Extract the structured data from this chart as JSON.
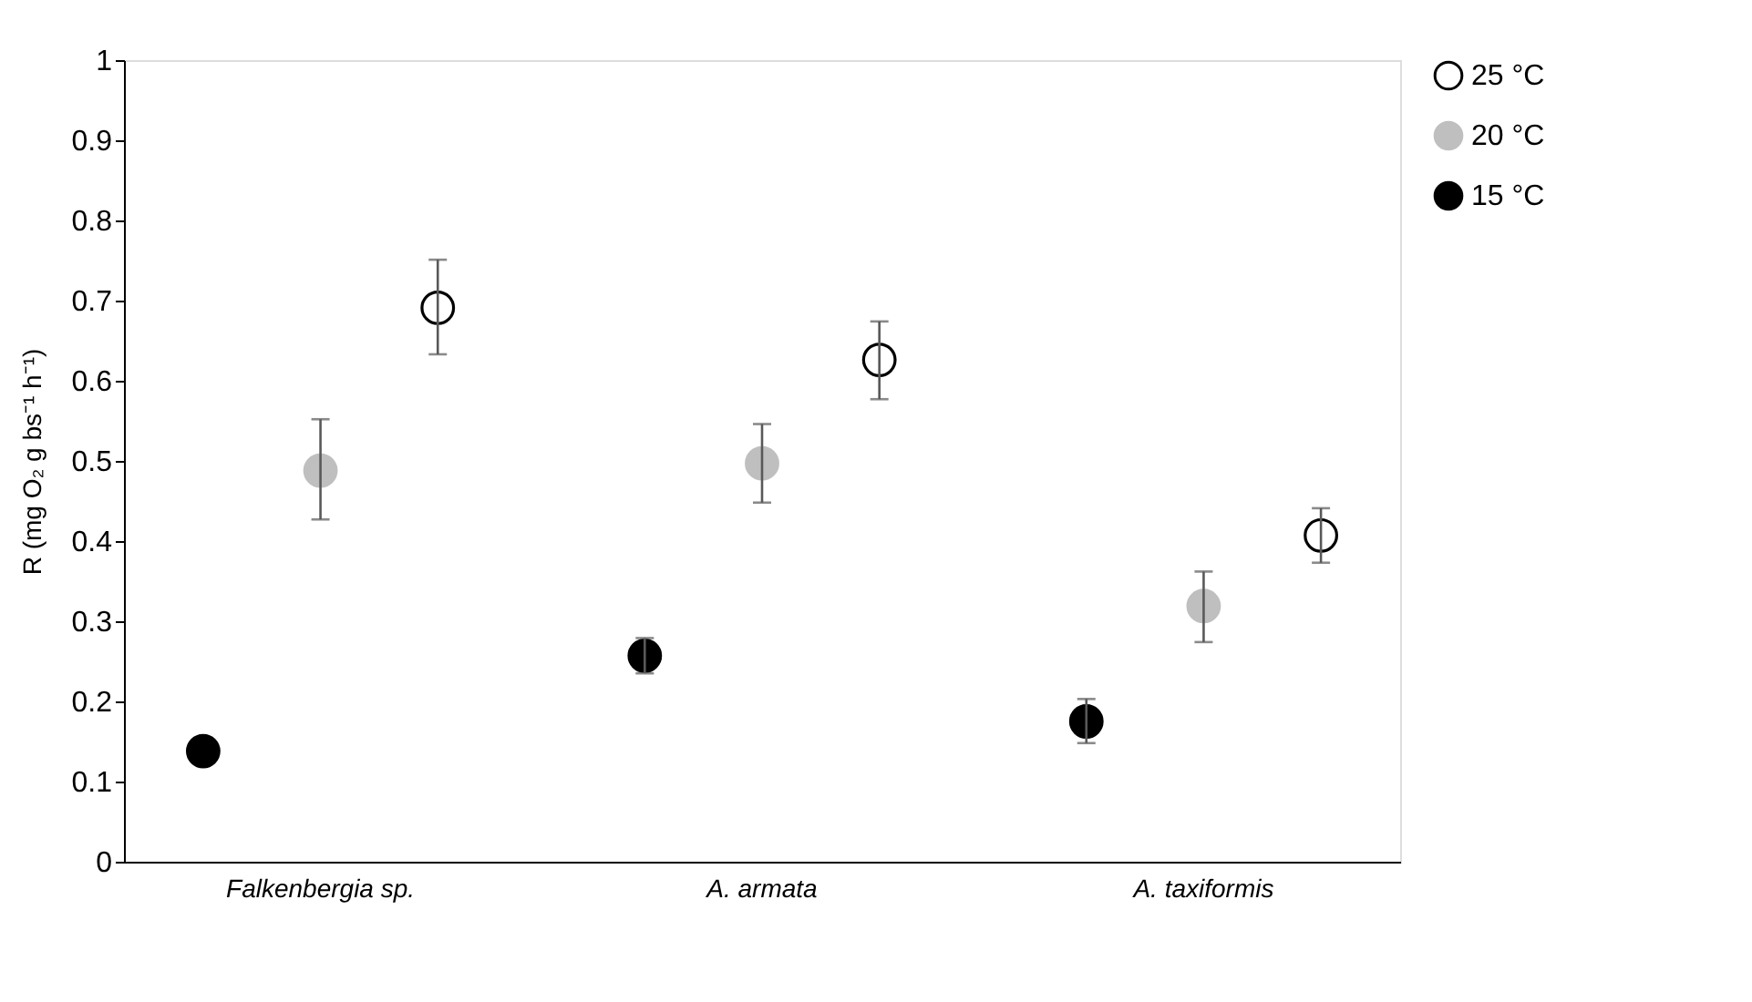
{
  "chart_data": {
    "type": "scatter",
    "ylabel": "R (mg O₂ g bs⁻¹ h⁻¹)",
    "categories": [
      "Falkenbergia sp.",
      "A. armata",
      "A. taxiformis"
    ],
    "series": [
      {
        "name": "25 °C",
        "color": "#ffffff",
        "values": [
          0.691,
          0.626,
          0.407
        ],
        "errors": [
          [
            0.633,
            0.751
          ],
          [
            0.577,
            0.674
          ],
          [
            0.373,
            0.441
          ]
        ]
      },
      {
        "name": "20 °C",
        "color": "#bfbfbf",
        "values": [
          0.488,
          0.497,
          0.319
        ],
        "errors": [
          [
            0.427,
            0.552
          ],
          [
            0.448,
            0.546
          ],
          [
            0.274,
            0.362
          ]
        ]
      },
      {
        "name": "15 °C",
        "color": "#000000",
        "values": [
          0.138,
          0.257,
          0.175
        ],
        "errors": [
          null,
          [
            0.235,
            0.279
          ],
          [
            0.148,
            0.203
          ]
        ]
      }
    ],
    "ylim": [
      0,
      1
    ],
    "yticks": [
      0,
      0.1,
      0.2,
      0.3,
      0.4,
      0.5,
      0.6,
      0.7,
      0.8,
      0.9,
      1
    ],
    "grid": false,
    "legend": "top right",
    "marker": "circle"
  }
}
